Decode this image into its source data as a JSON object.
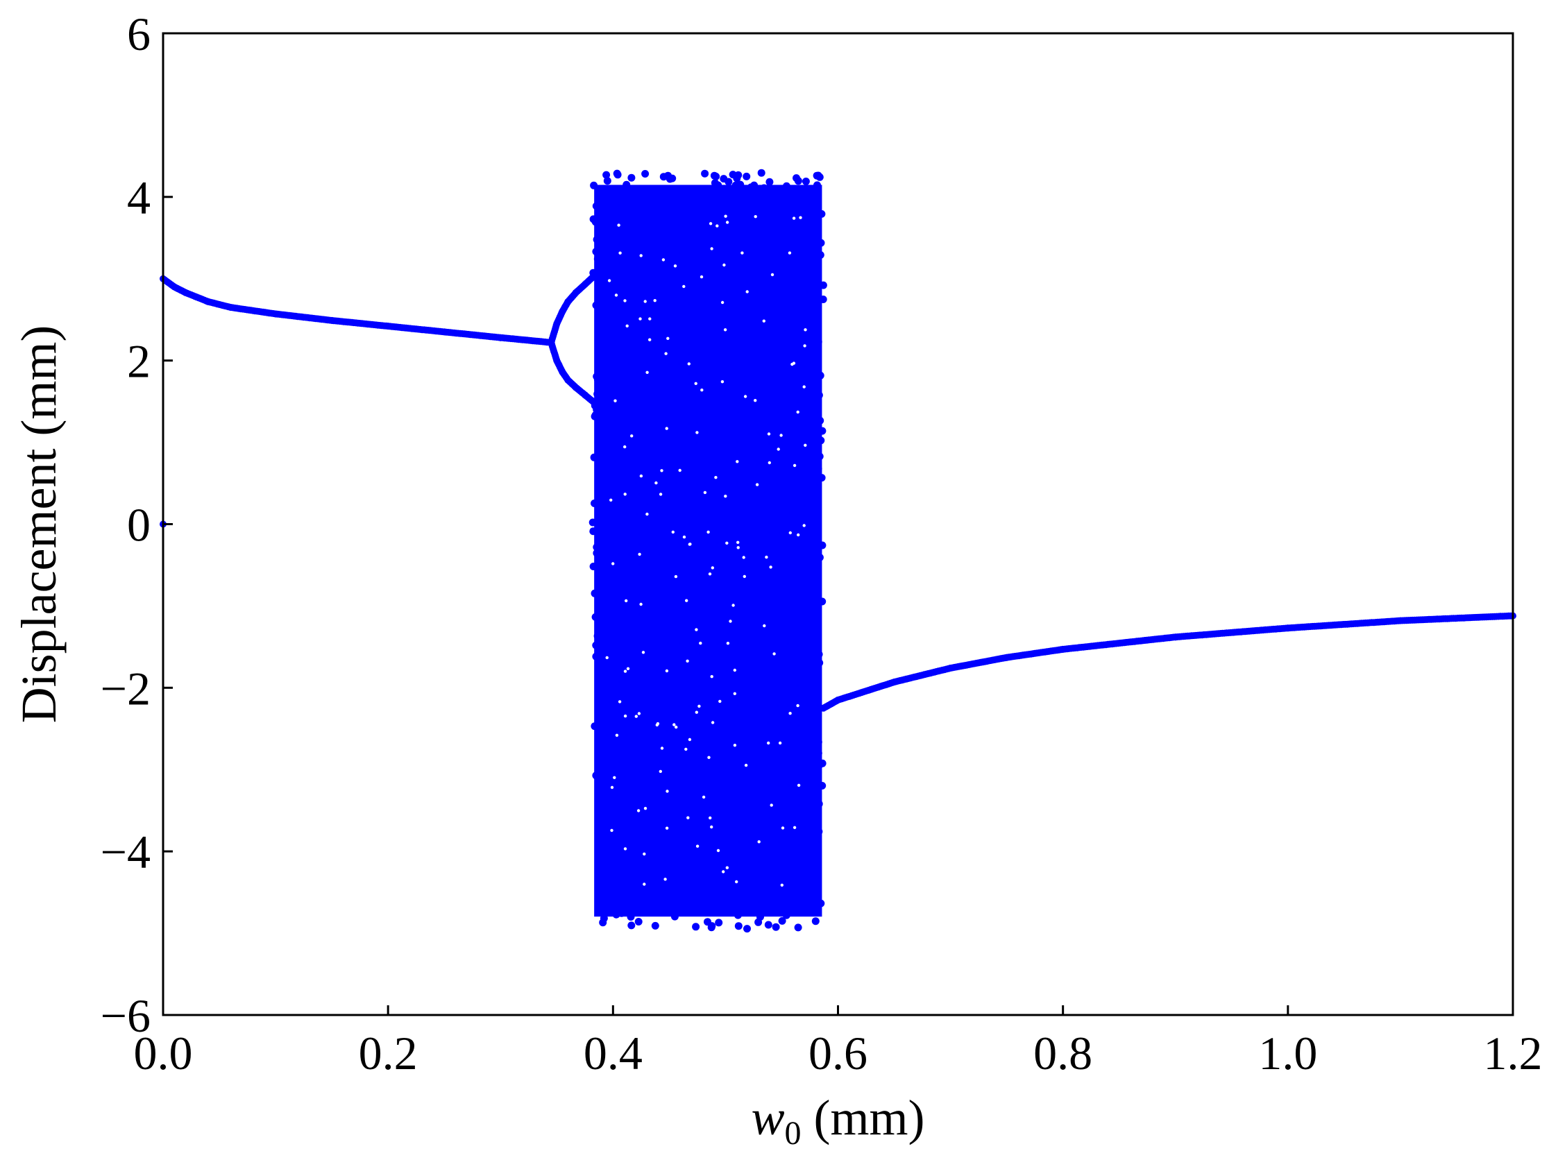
{
  "chart_data": {
    "type": "scatter",
    "title": "",
    "xlabel": {
      "symbol": "w",
      "subscript": "0",
      "unit": " (mm)"
    },
    "ylabel": "Displacement (mm)",
    "xlim": [
      0.0,
      1.2
    ],
    "ylim": [
      -6,
      6
    ],
    "xticks": [
      "0.0",
      "0.2",
      "0.4",
      "0.6",
      "0.8",
      "1.0",
      "1.2"
    ],
    "yticks": [
      "−6",
      "−4",
      "−2",
      "0",
      "2",
      "4",
      "6"
    ],
    "grid": false,
    "legend": "none",
    "marker_color": "#0000ff",
    "series": [
      {
        "x": [
          0.0,
          0.01,
          0.02,
          0.04,
          0.06,
          0.1,
          0.15,
          0.2,
          0.25,
          0.3,
          0.345
        ],
        "y": [
          3.0,
          2.9,
          2.83,
          2.72,
          2.65,
          2.57,
          2.49,
          2.42,
          2.35,
          2.28,
          2.22
        ]
      },
      {
        "x": [
          0.345,
          0.35,
          0.355,
          0.36,
          0.367,
          0.375,
          0.382
        ],
        "y": [
          2.22,
          2.45,
          2.6,
          2.72,
          2.83,
          2.93,
          3.02
        ]
      },
      {
        "x": [
          0.345,
          0.35,
          0.355,
          0.36,
          0.367,
          0.375,
          0.382
        ],
        "y": [
          2.22,
          2.0,
          1.86,
          1.76,
          1.67,
          1.58,
          1.5
        ]
      },
      {
        "x": [
          0.587,
          0.6,
          0.65,
          0.7,
          0.75,
          0.8,
          0.9,
          1.0,
          1.1,
          1.2
        ],
        "y": [
          -2.25,
          -2.15,
          -1.93,
          -1.76,
          -1.63,
          -1.53,
          -1.38,
          -1.27,
          -1.18,
          -1.12
        ]
      },
      {
        "x": [
          0.0
        ],
        "y": [
          0.0
        ]
      }
    ],
    "chaotic_band": {
      "x_range": [
        0.382,
        0.587
      ],
      "y_range": [
        -4.95,
        4.3
      ]
    }
  }
}
